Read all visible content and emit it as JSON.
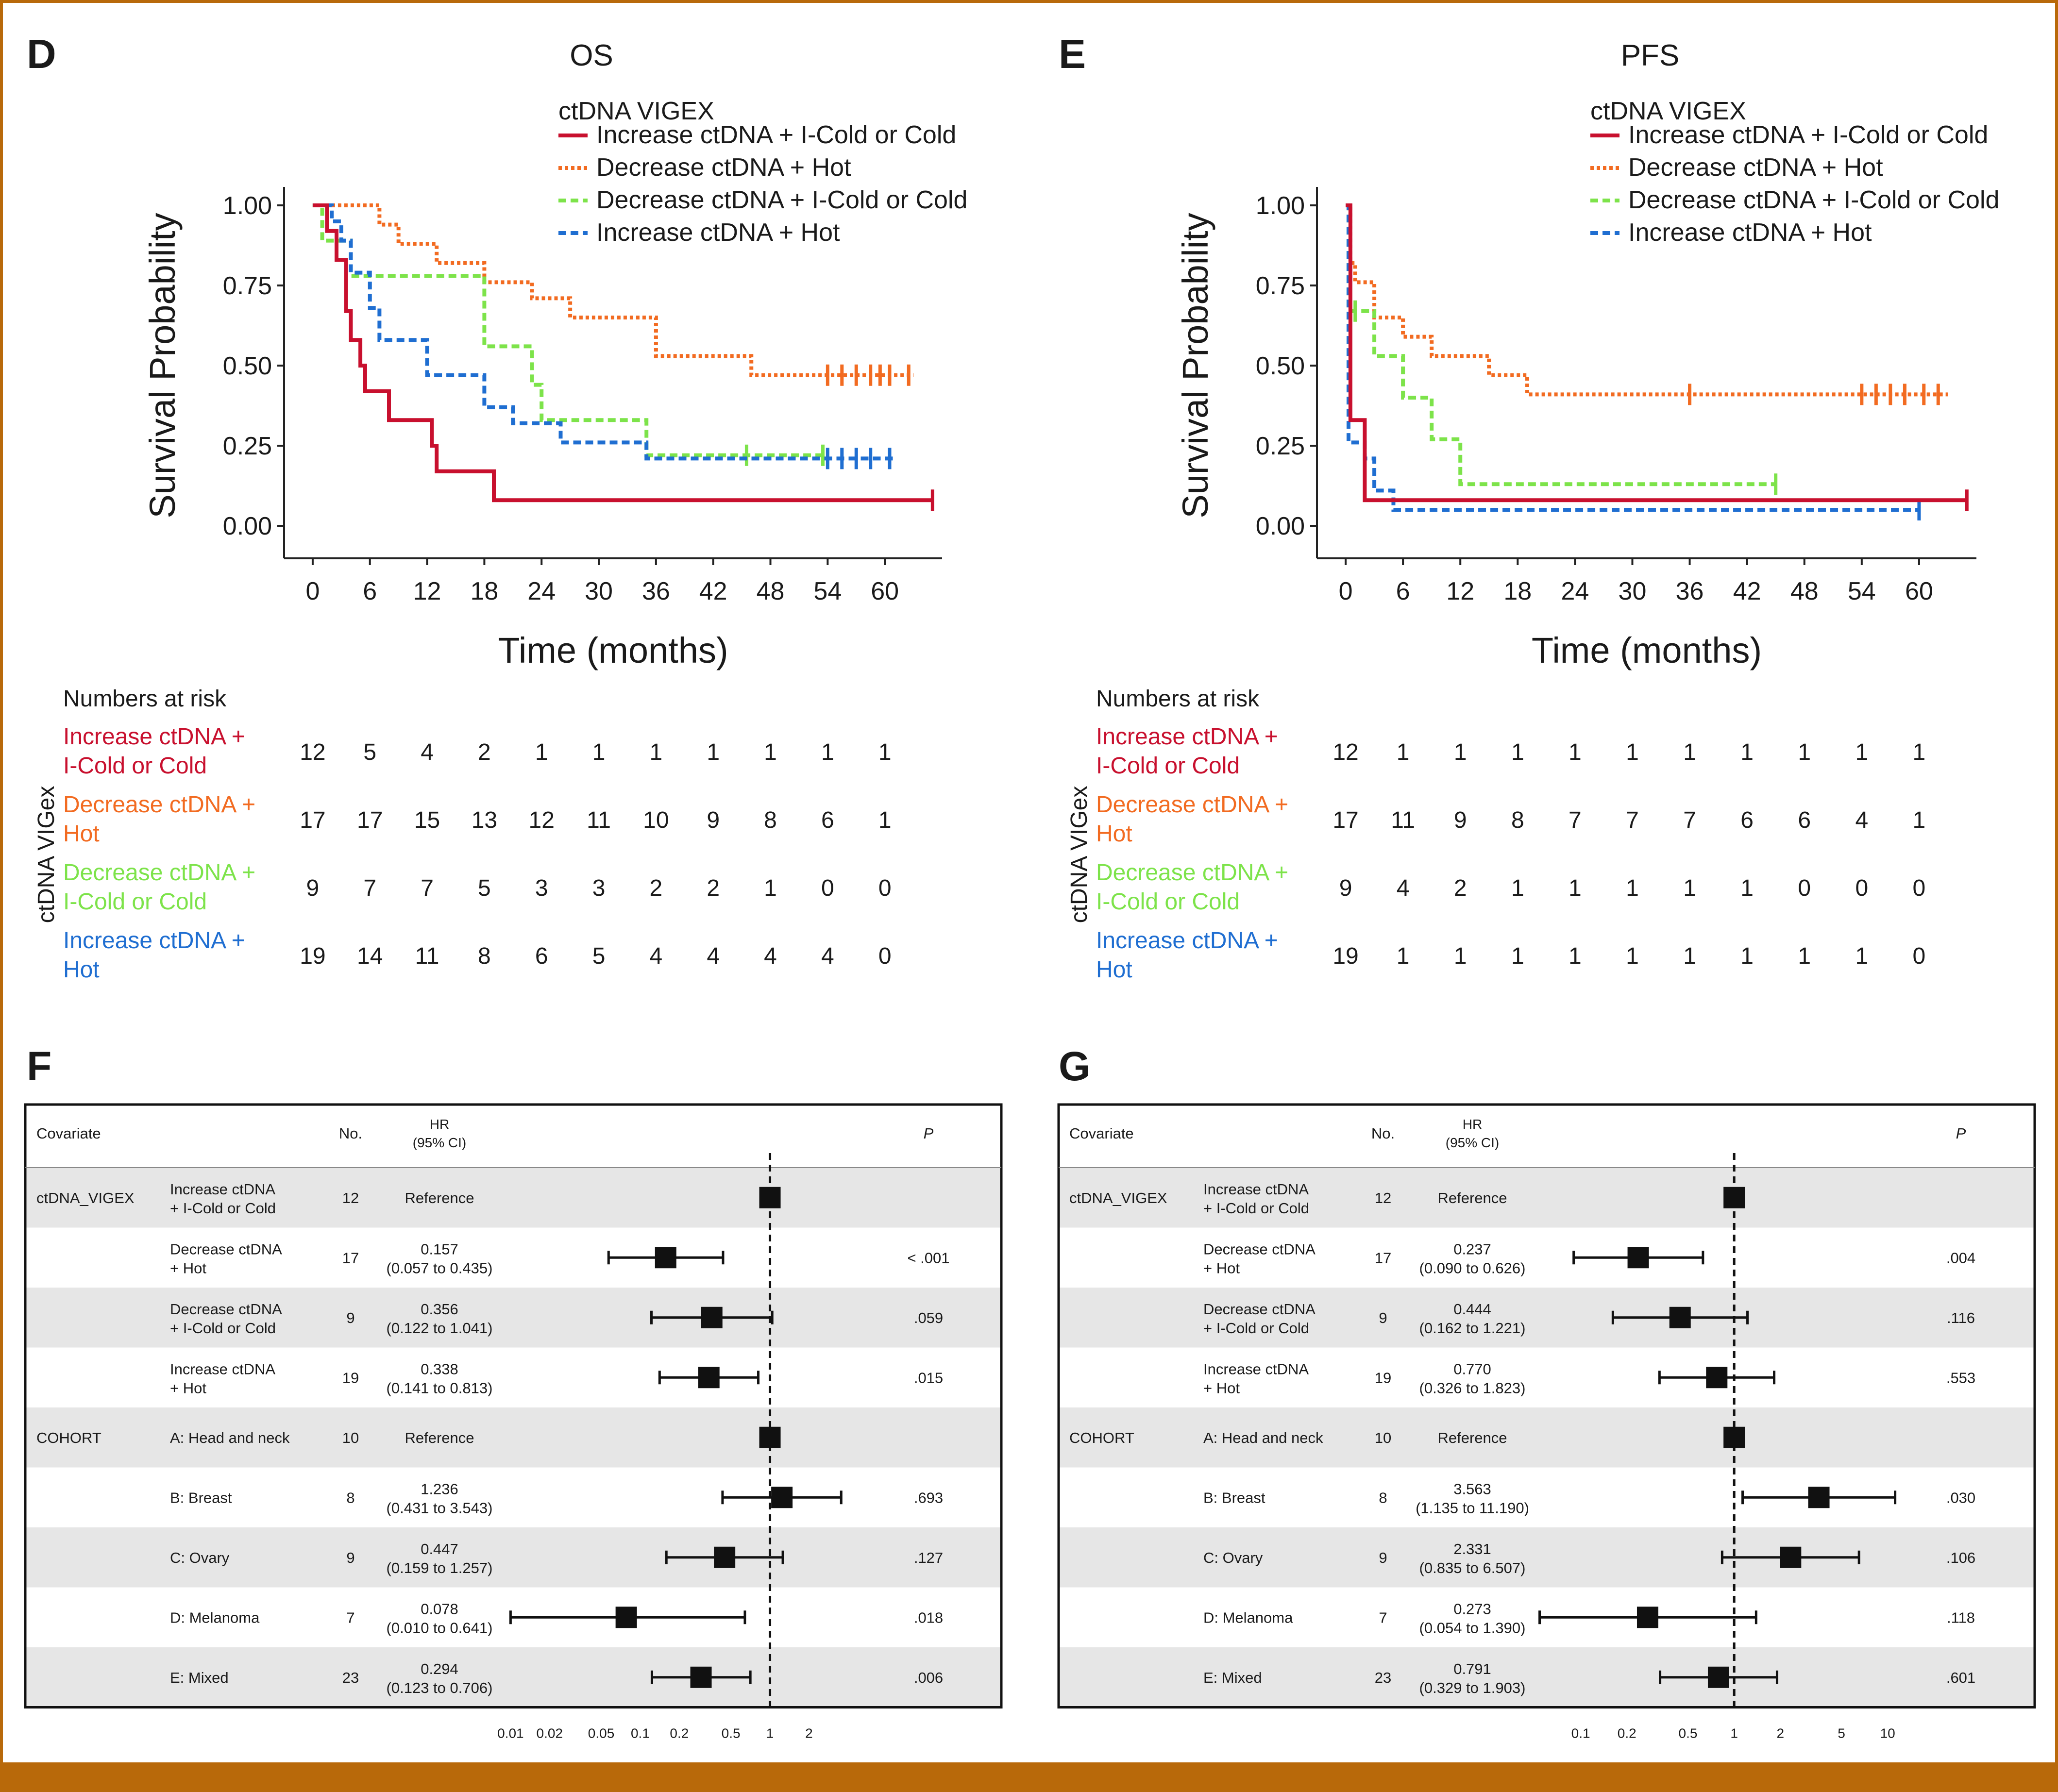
{
  "colors": {
    "inc_cold": "#c8102e",
    "dec_hot": "#f26b21",
    "dec_cold": "#7de34a",
    "inc_hot": "#1f6ed1",
    "frame": "#b8690a",
    "row_shade": "#e6e6e6"
  },
  "legend_title": "ctDNA VIGEX",
  "series_names": {
    "inc_cold": "Increase ctDNA + I-Cold or Cold",
    "dec_hot": "Decrease ctDNA + Hot",
    "dec_cold": "Decrease ctDNA + I-Cold or Cold",
    "inc_hot": "Increase ctDNA + Hot"
  },
  "risk_title": "Numbers at risk",
  "risk_ylabel": "ctDNA VIGex",
  "risk_labels": [
    [
      "Increase ctDNA +",
      "I-Cold or Cold"
    ],
    [
      "Decrease ctDNA +",
      "Hot"
    ],
    [
      "Decrease ctDNA +",
      "I-Cold or Cold"
    ],
    [
      "Increase ctDNA +",
      "Hot"
    ]
  ],
  "chart_data": [
    {
      "id": "D",
      "type": "line",
      "panel_label": "D",
      "title": "OS",
      "xlabel": "Time (months)",
      "ylabel": "Survival Probability",
      "xlim": [
        -3,
        66
      ],
      "ylim": [
        0,
        1
      ],
      "xticks": [
        0,
        6,
        12,
        18,
        24,
        30,
        36,
        42,
        48,
        54,
        60
      ],
      "yticks": [
        "0.00",
        "0.25",
        "0.50",
        "0.75",
        "1.00"
      ],
      "series": [
        {
          "key": "dec_hot",
          "dash": "dot",
          "steps": [
            [
              0,
              1
            ],
            [
              7,
              0.94
            ],
            [
              9,
              0.88
            ],
            [
              13,
              0.82
            ],
            [
              18,
              0.76
            ],
            [
              23,
              0.71
            ],
            [
              27,
              0.65
            ],
            [
              36,
              0.53
            ],
            [
              46,
              0.47
            ],
            [
              63,
              0.47
            ]
          ],
          "censors": [
            54,
            55.5,
            57,
            58.5,
            59.5,
            60.5,
            62.5
          ]
        },
        {
          "key": "dec_cold",
          "dash": "dash",
          "steps": [
            [
              0,
              1
            ],
            [
              1,
              0.89
            ],
            [
              4,
              0.78
            ],
            [
              18,
              0.56
            ],
            [
              23,
              0.44
            ],
            [
              24,
              0.33
            ],
            [
              35,
              0.22
            ],
            [
              54,
              0.22
            ]
          ],
          "censors": [
            45.5,
            53.5
          ]
        },
        {
          "key": "inc_hot",
          "dash": "dash",
          "steps": [
            [
              0,
              1
            ],
            [
              2,
              0.95
            ],
            [
              3,
              0.89
            ],
            [
              4,
              0.79
            ],
            [
              6,
              0.68
            ],
            [
              7,
              0.58
            ],
            [
              12,
              0.47
            ],
            [
              18,
              0.37
            ],
            [
              21,
              0.32
            ],
            [
              26,
              0.26
            ],
            [
              35,
              0.21
            ],
            [
              61,
              0.21
            ]
          ],
          "censors": [
            54,
            55.5,
            57,
            58.5,
            60.5
          ]
        },
        {
          "key": "inc_cold",
          "dash": "solid",
          "steps": [
            [
              0,
              1
            ],
            [
              1.5,
              0.92
            ],
            [
              2.5,
              0.83
            ],
            [
              3.5,
              0.67
            ],
            [
              4,
              0.58
            ],
            [
              5,
              0.5
            ],
            [
              5.5,
              0.42
            ],
            [
              8,
              0.33
            ],
            [
              12.5,
              0.25
            ],
            [
              13,
              0.17
            ],
            [
              19,
              0.08
            ],
            [
              65,
              0.08
            ]
          ],
          "censors": [
            65
          ]
        }
      ],
      "risk_xticks": [
        0,
        6,
        12,
        18,
        24,
        30,
        36,
        42,
        48,
        54,
        60
      ],
      "risk": [
        [
          12,
          5,
          4,
          2,
          1,
          1,
          1,
          1,
          1,
          1,
          1
        ],
        [
          17,
          17,
          15,
          13,
          12,
          11,
          10,
          9,
          8,
          6,
          1
        ],
        [
          9,
          7,
          7,
          5,
          3,
          3,
          2,
          2,
          1,
          0,
          0
        ],
        [
          19,
          14,
          11,
          8,
          6,
          5,
          4,
          4,
          4,
          4,
          0
        ]
      ]
    },
    {
      "id": "E",
      "type": "line",
      "panel_label": "E",
      "title": "PFS",
      "xlabel": "Time (months)",
      "ylabel": "Survival Probability",
      "xlim": [
        -3,
        66
      ],
      "ylim": [
        0,
        1
      ],
      "xticks": [
        0,
        6,
        12,
        18,
        24,
        30,
        36,
        42,
        48,
        54,
        60
      ],
      "yticks": [
        "0.00",
        "0.25",
        "0.50",
        "0.75",
        "1.00"
      ],
      "series": [
        {
          "key": "dec_hot",
          "dash": "dot",
          "steps": [
            [
              0,
              1
            ],
            [
              0.5,
              0.82
            ],
            [
              1,
              0.76
            ],
            [
              3,
              0.65
            ],
            [
              6,
              0.59
            ],
            [
              9,
              0.53
            ],
            [
              15,
              0.47
            ],
            [
              19,
              0.41
            ],
            [
              63,
              0.41
            ]
          ],
          "censors": [
            36,
            54,
            55.5,
            57,
            58.5,
            60.5,
            62
          ]
        },
        {
          "key": "dec_cold",
          "dash": "dash",
          "steps": [
            [
              0,
              1
            ],
            [
              0.3,
              0.67
            ],
            [
              3,
              0.53
            ],
            [
              6,
              0.4
            ],
            [
              9,
              0.27
            ],
            [
              12,
              0.13
            ],
            [
              45,
              0.13
            ]
          ],
          "censors": [
            1,
            45
          ]
        },
        {
          "key": "inc_hot",
          "dash": "dash",
          "steps": [
            [
              0,
              1
            ],
            [
              0.3,
              0.26
            ],
            [
              2,
              0.21
            ],
            [
              3,
              0.11
            ],
            [
              5,
              0.05
            ],
            [
              60,
              0.05
            ]
          ],
          "censors": [
            60
          ]
        },
        {
          "key": "inc_cold",
          "dash": "solid",
          "steps": [
            [
              0,
              1
            ],
            [
              0.5,
              0.33
            ],
            [
              2,
              0.08
            ],
            [
              65,
              0.08
            ]
          ],
          "censors": [
            65
          ]
        }
      ],
      "risk_xticks": [
        0,
        6,
        12,
        18,
        24,
        30,
        36,
        42,
        48,
        54,
        60
      ],
      "risk": [
        [
          12,
          1,
          1,
          1,
          1,
          1,
          1,
          1,
          1,
          1,
          1
        ],
        [
          17,
          11,
          9,
          8,
          7,
          7,
          7,
          6,
          6,
          4,
          1
        ],
        [
          9,
          4,
          2,
          1,
          1,
          1,
          1,
          1,
          0,
          0,
          0
        ],
        [
          19,
          1,
          1,
          1,
          1,
          1,
          1,
          1,
          1,
          1,
          0
        ]
      ]
    }
  ],
  "forest_common": {
    "headers": {
      "covariate": "Covariate",
      "no": "No.",
      "hr_line1": "HR",
      "hr_line2": "(95% CI)",
      "p": "P"
    },
    "groups": [
      {
        "row": 0,
        "label": "ctDNA_VIGEX"
      },
      {
        "row": 4,
        "label": "COHORT"
      }
    ],
    "rows": [
      {
        "level": [
          "Increase ctDNA",
          "+ I-Cold or Cold"
        ],
        "n": "12"
      },
      {
        "level": [
          "Decrease ctDNA",
          "+ Hot"
        ],
        "n": "17"
      },
      {
        "level": [
          "Decrease ctDNA",
          "+ I-Cold or Cold"
        ],
        "n": "9"
      },
      {
        "level": [
          "Increase ctDNA",
          "+ Hot"
        ],
        "n": "19"
      },
      {
        "level": [
          "A: Head and neck"
        ],
        "n": "10"
      },
      {
        "level": [
          "B: Breast"
        ],
        "n": "8"
      },
      {
        "level": [
          "C: Ovary"
        ],
        "n": "9"
      },
      {
        "level": [
          "D: Melanoma"
        ],
        "n": "7"
      },
      {
        "level": [
          "E: Mixed"
        ],
        "n": "23"
      }
    ]
  },
  "forest": [
    {
      "panel_label": "F",
      "log_range": [
        0.0075,
        4.5
      ],
      "ticks": [
        "0.01",
        "0.02",
        "0.05",
        "0.1",
        "0.2",
        "0.5",
        "1",
        "2"
      ],
      "rows": [
        {
          "hr": 1,
          "ci": null,
          "hr_text": "Reference",
          "ci_text": "",
          "p": ""
        },
        {
          "hr": 0.157,
          "ci": [
            0.057,
            0.435
          ],
          "hr_text": "0.157",
          "ci_text": "(0.057 to 0.435)",
          "p": "< .001"
        },
        {
          "hr": 0.356,
          "ci": [
            0.122,
            1.041
          ],
          "hr_text": "0.356",
          "ci_text": "(0.122 to 1.041)",
          "p": ".059"
        },
        {
          "hr": 0.338,
          "ci": [
            0.141,
            0.813
          ],
          "hr_text": "0.338",
          "ci_text": "(0.141 to 0.813)",
          "p": ".015"
        },
        {
          "hr": 1,
          "ci": null,
          "hr_text": "Reference",
          "ci_text": "",
          "p": ""
        },
        {
          "hr": 1.236,
          "ci": [
            0.431,
            3.543
          ],
          "hr_text": "1.236",
          "ci_text": "(0.431 to 3.543)",
          "p": ".693"
        },
        {
          "hr": 0.447,
          "ci": [
            0.159,
            1.257
          ],
          "hr_text": "0.447",
          "ci_text": "(0.159 to 1.257)",
          "p": ".127"
        },
        {
          "hr": 0.078,
          "ci": [
            0.01,
            0.641
          ],
          "hr_text": "0.078",
          "ci_text": "(0.010 to 0.641)",
          "p": ".018"
        },
        {
          "hr": 0.294,
          "ci": [
            0.123,
            0.706
          ],
          "hr_text": "0.294",
          "ci_text": "(0.123 to 0.706)",
          "p": ".006"
        }
      ]
    },
    {
      "panel_label": "G",
      "log_range": [
        0.05,
        17
      ],
      "ticks": [
        "0.1",
        "0.2",
        "0.5",
        "1",
        "2",
        "5",
        "10"
      ],
      "rows": [
        {
          "hr": 1,
          "ci": null,
          "hr_text": "Reference",
          "ci_text": "",
          "p": ""
        },
        {
          "hr": 0.237,
          "ci": [
            0.09,
            0.626
          ],
          "hr_text": "0.237",
          "ci_text": "(0.090 to 0.626)",
          "p": ".004"
        },
        {
          "hr": 0.444,
          "ci": [
            0.162,
            1.221
          ],
          "hr_text": "0.444",
          "ci_text": "(0.162 to 1.221)",
          "p": ".116"
        },
        {
          "hr": 0.77,
          "ci": [
            0.326,
            1.823
          ],
          "hr_text": "0.770",
          "ci_text": "(0.326 to 1.823)",
          "p": ".553"
        },
        {
          "hr": 1,
          "ci": null,
          "hr_text": "Reference",
          "ci_text": "",
          "p": ""
        },
        {
          "hr": 3.563,
          "ci": [
            1.135,
            11.19
          ],
          "hr_text": "3.563",
          "ci_text": "(1.135 to 11.190)",
          "p": ".030"
        },
        {
          "hr": 2.331,
          "ci": [
            0.835,
            6.507
          ],
          "hr_text": "2.331",
          "ci_text": "(0.835 to 6.507)",
          "p": ".106"
        },
        {
          "hr": 0.273,
          "ci": [
            0.054,
            1.39
          ],
          "hr_text": "0.273",
          "ci_text": "(0.054 to 1.390)",
          "p": ".118"
        },
        {
          "hr": 0.791,
          "ci": [
            0.329,
            1.903
          ],
          "hr_text": "0.791",
          "ci_text": "(0.329 to 1.903)",
          "p": ".601"
        }
      ]
    }
  ]
}
